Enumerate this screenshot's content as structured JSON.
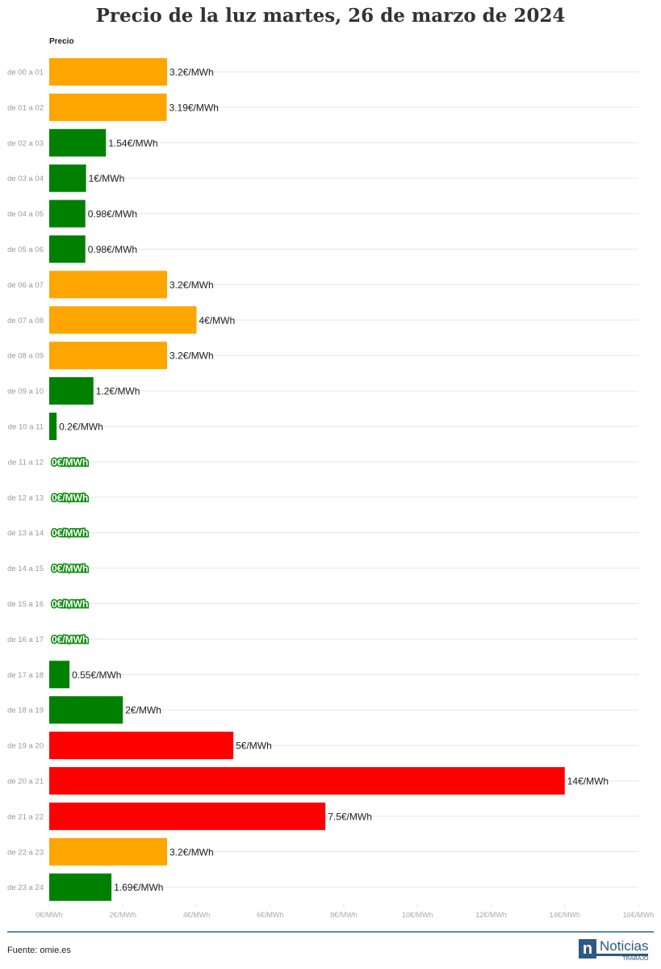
{
  "title": "Precio de la luz martes, 26 de marzo de 2024",
  "column_label": "Precio",
  "footer": {
    "source": "Fuente: omie.es",
    "logo_main": "Noticias",
    "logo_sub": "TRABAJO",
    "logo_letter": "n"
  },
  "colors": {
    "orange": "#FFA500",
    "green": "#008000",
    "red": "#FF0000"
  },
  "chart_data": {
    "type": "bar",
    "orientation": "horizontal",
    "xlim": [
      0,
      16
    ],
    "xticks": [
      "0€/MWh",
      "2€/MWh",
      "4€/MWh",
      "6€/MWh",
      "8€/MWh",
      "10€/MWh",
      "12€/MWh",
      "14€/MWh",
      "16€/MWh"
    ],
    "grid": true,
    "categories": [
      "de 00 a 01",
      "de 01 a 02",
      "de 02 a 03",
      "de 03 a 04",
      "de 04 a 05",
      "de 05 a 06",
      "de 06 a 07",
      "de 07 a 08",
      "de 08 a 09",
      "de 09 a 10",
      "de 10 a 11",
      "de 11 a 12",
      "de 12 a 13",
      "de 13 a 14",
      "de 14 a 15",
      "de 15 a 16",
      "de 16 a 17",
      "de 17 a 18",
      "de 18 a 19",
      "de 19 a 20",
      "de 20 a 21",
      "de 21 a 22",
      "de 22 a 23",
      "de 23 a 24"
    ],
    "values": [
      3.2,
      3.19,
      1.54,
      1,
      0.98,
      0.98,
      3.2,
      4,
      3.2,
      1.2,
      0.2,
      0,
      0,
      0,
      0,
      0,
      0,
      0.55,
      2,
      5,
      14,
      7.5,
      3.2,
      1.69
    ],
    "labels": [
      "3.2€/MWh",
      "3.19€/MWh",
      "1.54€/MWh",
      "1€/MWh",
      "0.98€/MWh",
      "0.98€/MWh",
      "3.2€/MWh",
      "4€/MWh",
      "3.2€/MWh",
      "1.2€/MWh",
      "0.2€/MWh",
      "0€/MWh",
      "0€/MWh",
      "0€/MWh",
      "0€/MWh",
      "0€/MWh",
      "0€/MWh",
      "0.55€/MWh",
      "2€/MWh",
      "5€/MWh",
      "14€/MWh",
      "7.5€/MWh",
      "3.2€/MWh",
      "1.69€/MWh"
    ],
    "bar_colors": [
      "orange",
      "orange",
      "green",
      "green",
      "green",
      "green",
      "orange",
      "orange",
      "orange",
      "green",
      "green",
      "green",
      "green",
      "green",
      "green",
      "green",
      "green",
      "green",
      "green",
      "red",
      "red",
      "red",
      "orange",
      "green"
    ]
  }
}
